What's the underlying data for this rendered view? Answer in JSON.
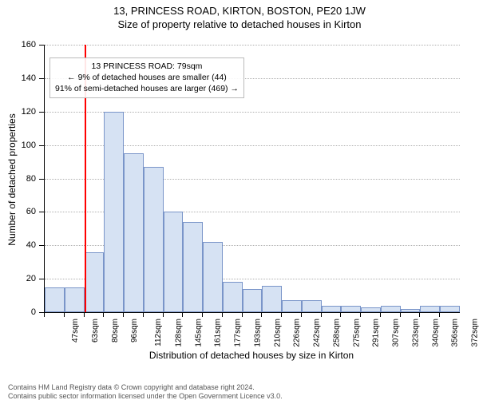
{
  "titles": {
    "address": "13, PRINCESS ROAD, KIRTON, BOSTON, PE20 1JW",
    "subtitle": "Size of property relative to detached houses in Kirton"
  },
  "axes": {
    "ylabel": "Number of detached properties",
    "xlabel": "Distribution of detached houses by size in Kirton",
    "ylim": [
      0,
      160
    ],
    "ytick_step": 20,
    "xticks": [
      "47sqm",
      "63sqm",
      "80sqm",
      "96sqm",
      "112sqm",
      "128sqm",
      "145sqm",
      "161sqm",
      "177sqm",
      "193sqm",
      "210sqm",
      "226sqm",
      "242sqm",
      "258sqm",
      "275sqm",
      "291sqm",
      "307sqm",
      "323sqm",
      "340sqm",
      "356sqm",
      "372sqm"
    ],
    "grid_color": "#b0b0b0"
  },
  "chart": {
    "type": "histogram",
    "bar_color": "#d6e2f3",
    "bar_border_color": "#7a95c9",
    "background_color": "#ffffff",
    "values": [
      15,
      15,
      36,
      120,
      95,
      87,
      60,
      54,
      42,
      18,
      14,
      16,
      7,
      7,
      4,
      4,
      3,
      4,
      2,
      4,
      4
    ],
    "reference_line": {
      "index_position": 2.0,
      "color": "#ff0000"
    }
  },
  "annotation": {
    "line1": "13 PRINCESS ROAD: 79sqm",
    "line2": "← 9% of detached houses are smaller (44)",
    "line3": "91% of semi-detached houses are larger (469) →"
  },
  "footer": {
    "line1": "Contains HM Land Registry data © Crown copyright and database right 2024.",
    "line2": "Contains public sector information licensed under the Open Government Licence v3.0."
  },
  "style": {
    "title_fontsize": 13,
    "axis_label_fontsize": 12,
    "tick_fontsize": 11,
    "xtick_fontsize": 10,
    "annotation_fontsize": 10.5,
    "footer_fontsize": 9
  }
}
